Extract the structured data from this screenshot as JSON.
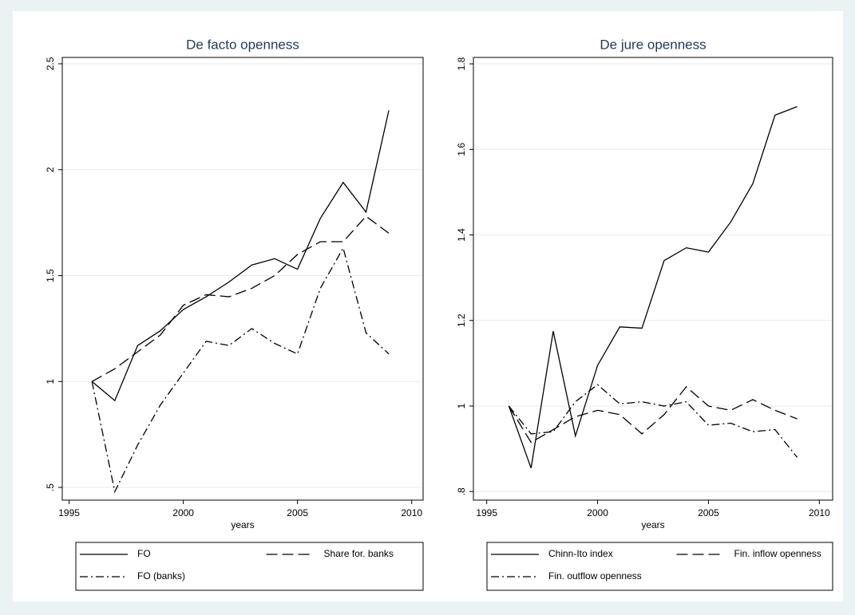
{
  "chart_data": [
    {
      "type": "line",
      "title": "De facto openness",
      "x_label": "years",
      "x": [
        1996,
        1997,
        1998,
        1999,
        2000,
        2001,
        2002,
        2003,
        2004,
        2005,
        2006,
        2007,
        2008,
        2009
      ],
      "series": [
        {
          "name": "FO",
          "color": "#000000",
          "dash": "solid",
          "values": [
            1.0,
            0.91,
            1.17,
            1.24,
            1.34,
            1.4,
            1.47,
            1.55,
            1.58,
            1.53,
            1.77,
            1.94,
            1.8,
            2.28
          ]
        },
        {
          "name": "Share for. banks",
          "color": "#000000",
          "dash": "dash",
          "values": [
            1.0,
            1.06,
            1.14,
            1.22,
            1.36,
            1.41,
            1.4,
            1.44,
            1.5,
            1.6,
            1.66,
            1.66,
            1.78,
            1.7
          ]
        },
        {
          "name": "FO (banks)",
          "color": "#000000",
          "dash": "dashdot",
          "values": [
            1.0,
            0.48,
            0.7,
            0.89,
            1.04,
            1.19,
            1.17,
            1.25,
            1.18,
            1.13,
            1.44,
            1.63,
            1.23,
            1.13
          ]
        }
      ],
      "xlim": [
        1994.7,
        2010.5
      ],
      "xticks": [
        1995,
        2000,
        2005,
        2010
      ],
      "ylim": [
        0.44,
        2.53
      ],
      "yticks": [
        {
          "value": 0.5,
          "label": ".5"
        },
        1,
        1.5,
        2,
        2.5
      ],
      "grid": true
    },
    {
      "type": "line",
      "title": "De jure openness",
      "x_label": "years",
      "x": [
        1996,
        1997,
        1998,
        1999,
        2000,
        2001,
        2002,
        2003,
        2004,
        2005,
        2006,
        2007,
        2008,
        2009
      ],
      "series": [
        {
          "name": "Chinn-Ito index",
          "color": "#000000",
          "dash": "solid",
          "values": [
            1.0,
            0.855,
            1.175,
            0.93,
            1.095,
            1.185,
            1.182,
            1.34,
            1.37,
            1.36,
            1.43,
            1.52,
            1.68,
            1.7
          ]
        },
        {
          "name": "Fin. inflow openness",
          "color": "#000000",
          "dash": "dash",
          "values": [
            1.0,
            0.915,
            0.945,
            0.975,
            0.99,
            0.98,
            0.935,
            0.98,
            1.045,
            1.0,
            0.99,
            1.015,
            0.99,
            0.97
          ]
        },
        {
          "name": "Fin. outflow openness",
          "color": "#000000",
          "dash": "dashdot",
          "values": [
            1.0,
            0.935,
            0.94,
            1.01,
            1.05,
            1.005,
            1.01,
            1.0,
            1.01,
            0.955,
            0.96,
            0.94,
            0.945,
            0.88
          ]
        }
      ],
      "xlim": [
        1994.4,
        2010.6
      ],
      "xticks": [
        1995,
        2000,
        2005,
        2010
      ],
      "ylim": [
        0.78,
        1.815
      ],
      "yticks": [
        {
          "value": 0.8,
          "label": ".8"
        },
        1,
        1.2,
        1.4,
        1.6,
        1.8
      ],
      "grid": true
    }
  ]
}
